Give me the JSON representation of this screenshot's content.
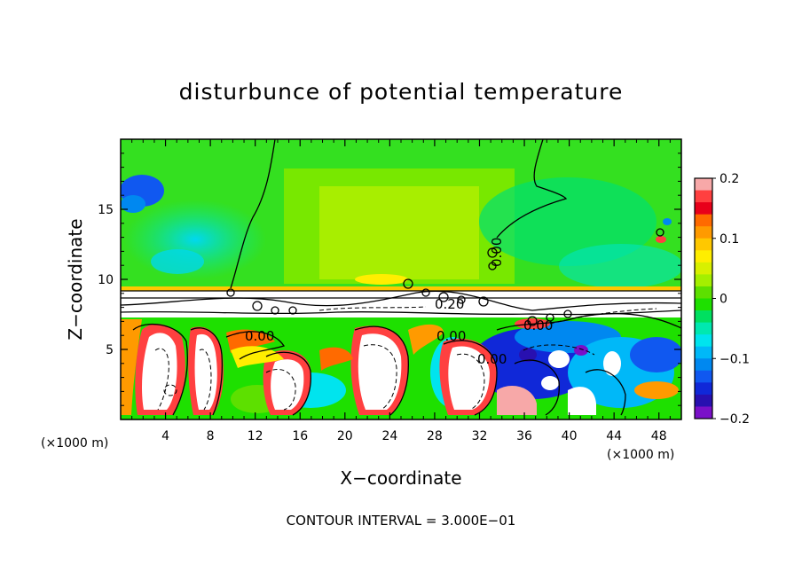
{
  "chart_data": {
    "type": "heatmap",
    "title": "disturbunce of potential temperature",
    "xlabel": "X−coordinate",
    "ylabel": "Z−coordinate",
    "x_unit_left": "(×1000 m)",
    "x_unit_right": "(×1000 m)",
    "footer": "CONTOUR INTERVAL = 3.000E−01",
    "xlim": [
      0,
      50
    ],
    "ylim": [
      0,
      20
    ],
    "x_ticks": [
      4,
      8,
      12,
      16,
      20,
      24,
      28,
      32,
      36,
      40,
      44,
      48
    ],
    "y_ticks": [
      5,
      10,
      15
    ],
    "colorbar": {
      "vmin": -0.2,
      "vmax": 0.2,
      "tick_labels": [
        "0.2",
        "0.1",
        "0",
        "−0.1",
        "−0.2"
      ],
      "tick_values": [
        0.2,
        0.1,
        0,
        -0.1,
        -0.2
      ],
      "colors": [
        "#f7a8a8",
        "#ff4040",
        "#e8001a",
        "#ff6a00",
        "#ff9a00",
        "#ffc800",
        "#ffee00",
        "#d8f000",
        "#a4ef00",
        "#5de000",
        "#1ee000",
        "#00e060",
        "#00e8b0",
        "#00e4ee",
        "#00b8f8",
        "#0088f0",
        "#1058f0",
        "#1028d8",
        "#2810b0",
        "#7a10c8"
      ]
    },
    "contour_labels": [
      "0.00",
      "0.00",
      "0.00",
      "0.00",
      "0.00",
      "0.20"
    ]
  }
}
